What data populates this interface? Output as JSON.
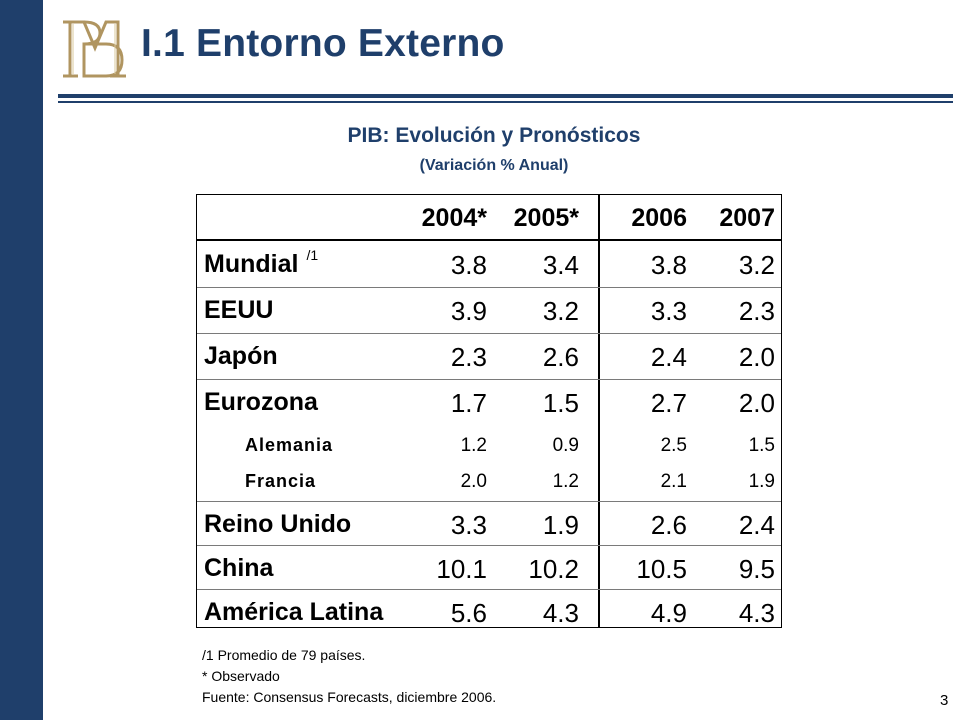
{
  "header": {
    "title": "I.1 Entorno Externo",
    "logo_name": "bank-monogram-logo"
  },
  "table": {
    "title": "PIB: Evolución y Pronósticos",
    "subtitle": "(Variación % Anual)",
    "columns": [
      "2004*",
      "2005*",
      "2006",
      "2007"
    ],
    "rows": [
      {
        "label": "Mundial",
        "footnote": "/1",
        "values": [
          "3.8",
          "3.4",
          "3.8",
          "3.2"
        ],
        "sub": false
      },
      {
        "label": "EEUU",
        "values": [
          "3.9",
          "3.2",
          "3.3",
          "2.3"
        ],
        "sub": false
      },
      {
        "label": "Japón",
        "values": [
          "2.3",
          "2.6",
          "2.4",
          "2.0"
        ],
        "sub": false
      },
      {
        "label": "Eurozona",
        "values": [
          "1.7",
          "1.5",
          "2.7",
          "2.0"
        ],
        "sub": false
      },
      {
        "label": "Alemania",
        "values": [
          "1.2",
          "0.9",
          "2.5",
          "1.5"
        ],
        "sub": true
      },
      {
        "label": "Francia",
        "values": [
          "2.0",
          "1.2",
          "2.1",
          "1.9"
        ],
        "sub": true
      },
      {
        "label": "Reino Unido",
        "values": [
          "3.3",
          "1.9",
          "2.6",
          "2.4"
        ],
        "sub": false
      },
      {
        "label": "China",
        "values": [
          "10.1",
          "10.2",
          "10.5",
          "9.5"
        ],
        "sub": false
      },
      {
        "label": "América Latina",
        "values": [
          "5.6",
          "4.3",
          "4.9",
          "4.3"
        ],
        "sub": false
      }
    ]
  },
  "notes": {
    "line1": "/1 Promedio de 79 países.",
    "line2": "* Observado",
    "line3": "Fuente: Consensus Forecasts, diciembre 2006."
  },
  "page_number": "3",
  "colors": {
    "accent": "#1f3f6b",
    "logo": "#b09560"
  }
}
